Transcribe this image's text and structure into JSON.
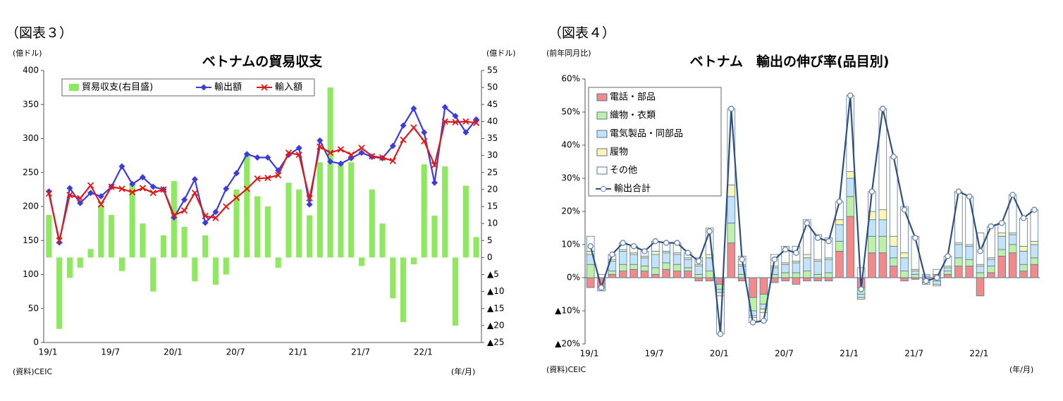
{
  "chart_data": [
    {
      "type": "combo",
      "figure_label": "（図表３）",
      "title": "ベトナムの貿易収支",
      "y_unit": "(億ドル)",
      "y2_unit": "(億ドル)",
      "source": "(資料)CEIC",
      "x_unit": "(年/月)",
      "categories": [
        "19/1",
        null,
        null,
        null,
        null,
        null,
        "19/7",
        null,
        null,
        null,
        null,
        null,
        "20/1",
        null,
        null,
        null,
        null,
        null,
        "20/7",
        null,
        null,
        null,
        null,
        null,
        "21/1",
        null,
        null,
        null,
        null,
        null,
        "21/7",
        null,
        null,
        null,
        null,
        null,
        "22/1",
        null,
        null,
        null,
        null,
        null
      ],
      "ylim": [
        0,
        400
      ],
      "yticks": [
        0,
        50,
        100,
        150,
        200,
        250,
        300,
        350,
        400
      ],
      "y2lim": [
        -25,
        55
      ],
      "y2ticks": [
        {
          "value": -25,
          "label": "▲25"
        },
        {
          "value": -20,
          "label": "▲20"
        },
        {
          "value": -15,
          "label": "▲15"
        },
        {
          "value": -10,
          "label": "▲10"
        },
        {
          "value": -5,
          "label": "▲5"
        },
        0,
        5,
        10,
        15,
        20,
        25,
        30,
        35,
        40,
        45,
        50,
        55
      ],
      "legend": "top-left",
      "legend_layout": "row",
      "stacked": false,
      "series": [
        {
          "name": "貿易収支(右目盛)",
          "type": "bar",
          "axis": "y2",
          "color": "#8ee860",
          "values": [
            12.5,
            -21,
            -6,
            -3,
            2.5,
            15.5,
            12.5,
            -4,
            21.5,
            10,
            -10,
            6.5,
            22.5,
            9,
            -7,
            6.5,
            -8,
            -5,
            20,
            30,
            18,
            15,
            -3,
            22,
            20,
            12.4,
            28,
            50,
            28,
            28,
            -2.5,
            20,
            10,
            -12,
            -19,
            -2,
            27.4,
            12.3,
            26.8,
            -20,
            21.1,
            6
          ]
        },
        {
          "name": "輸出額",
          "type": "line",
          "marker": "diamond",
          "color": "#3c3cdc",
          "values": [
            222,
            147,
            227,
            205,
            220,
            215,
            229,
            259,
            233,
            243,
            229,
            225,
            184,
            210,
            240,
            176,
            192,
            226,
            249,
            277,
            272,
            272,
            253,
            276,
            286,
            203,
            297,
            266,
            263,
            271,
            279,
            273,
            271,
            289,
            319,
            344,
            309,
            235,
            346,
            333,
            309,
            328
          ]
        },
        {
          "name": "輸入額",
          "type": "line",
          "marker": "x",
          "color": "#e01818",
          "values": [
            219,
            150,
            217,
            212,
            231,
            203,
            229,
            226,
            221,
            227,
            220,
            225,
            187,
            194,
            220,
            186,
            183,
            200,
            213,
            226,
            241,
            242,
            246,
            279,
            276,
            212,
            288,
            279,
            284,
            276,
            286,
            274,
            272,
            267,
            298,
            316,
            296,
            261,
            325,
            324,
            325,
            323
          ]
        }
      ]
    },
    {
      "type": "combo",
      "figure_label": "（図表４）",
      "title": "ベトナム　輸出の伸び率(品目別)",
      "y_unit": "(前年同月比)",
      "source": "(資料)CEIC",
      "x_unit": "(年/月)",
      "categories": [
        "19/1",
        null,
        null,
        null,
        null,
        null,
        "19/7",
        null,
        null,
        null,
        null,
        null,
        "20/1",
        null,
        null,
        null,
        null,
        null,
        "20/7",
        null,
        null,
        null,
        null,
        null,
        "21/1",
        null,
        null,
        null,
        null,
        null,
        "21/7",
        null,
        null,
        null,
        null,
        null,
        "22/1",
        null,
        null,
        null,
        null,
        null
      ],
      "ylim": [
        -20,
        60
      ],
      "yticks": [
        {
          "value": -20,
          "label": "▲20%"
        },
        {
          "value": -10,
          "label": "▲10%"
        },
        {
          "value": 0,
          "label": "0%"
        },
        {
          "value": 10,
          "label": "10%"
        },
        {
          "value": 20,
          "label": "20%"
        },
        {
          "value": 30,
          "label": "30%"
        },
        {
          "value": 40,
          "label": "40%"
        },
        {
          "value": 50,
          "label": "50%"
        },
        {
          "value": 60,
          "label": "60%"
        }
      ],
      "legend": "top-left",
      "legend_layout": "column",
      "stacked": true,
      "series": [
        {
          "name": "電話・部品",
          "type": "bar",
          "color": "#f28a8a",
          "values": [
            -3,
            -3,
            1,
            2,
            2.5,
            2,
            1,
            2.5,
            2,
            2,
            -1,
            -1,
            -2,
            10.5,
            -1,
            -6,
            -5,
            -1.5,
            -1,
            -2,
            -1,
            -1,
            -1,
            8,
            18.5,
            -3,
            7.5,
            7.5,
            3.5,
            -1,
            -0.5,
            -0.5,
            1,
            1,
            3.5,
            3.5,
            -5.5,
            1.5,
            6.5,
            7.5,
            2,
            4
          ]
        },
        {
          "name": "織物・衣類",
          "type": "bar",
          "color": "#bff0a8",
          "values": [
            4,
            0,
            1,
            2,
            1.5,
            1.5,
            2,
            2,
            2,
            1,
            1,
            2,
            -1.5,
            6,
            1,
            -4,
            -3,
            1,
            1.5,
            1.5,
            2,
            1,
            1.5,
            3,
            6,
            -2,
            5,
            5,
            2.5,
            2,
            1,
            -1,
            -1,
            1,
            2.5,
            2,
            1.5,
            2,
            2,
            2.5,
            2,
            2
          ]
        },
        {
          "name": "電気製品・同部品",
          "type": "bar",
          "color": "#c4e2f8",
          "values": [
            3,
            -1,
            3,
            4,
            3,
            2.5,
            4,
            3,
            3,
            2.5,
            2.5,
            4,
            -1,
            8,
            2.5,
            -1.5,
            -1.5,
            2,
            2.5,
            3,
            4,
            4,
            4,
            5,
            5.5,
            -1,
            5,
            5,
            3.5,
            4,
            1,
            0.5,
            -1,
            1,
            4,
            4,
            2,
            2,
            4,
            3,
            4,
            4
          ]
        },
        {
          "name": "履物",
          "type": "bar",
          "color": "#fff6b4",
          "values": [
            1,
            0,
            0.5,
            0.5,
            0.5,
            0.5,
            1,
            0.5,
            0.5,
            0.5,
            0.5,
            1,
            -1,
            3.5,
            0.5,
            -0.5,
            -1,
            0.5,
            0.5,
            0.5,
            1,
            0.5,
            0.5,
            1.5,
            2,
            -0.5,
            2.5,
            3,
            3,
            1.5,
            0.5,
            -0.5,
            -0.5,
            0.5,
            0.5,
            0.5,
            0.5,
            0.5,
            1,
            0.5,
            1.5,
            1
          ]
        },
        {
          "name": "その他",
          "type": "bar",
          "color": "#ffffff",
          "values": [
            4.5,
            1,
            1.5,
            2,
            2,
            1.5,
            3,
            2.5,
            3,
            1.5,
            2,
            8,
            -11.5,
            23,
            2.5,
            -1.5,
            -2.5,
            3.5,
            5,
            4.5,
            10.5,
            7.5,
            6,
            5.5,
            23,
            3,
            6,
            30.5,
            24,
            14,
            10,
            0.5,
            1.5,
            3,
            15.5,
            14.5,
            9.5,
            9.5,
            3,
            11.5,
            8.5,
            9.5
          ]
        },
        {
          "name": "輸出合計",
          "type": "line",
          "marker": "circle",
          "color": "#2f4f7f",
          "values": [
            9.5,
            -3,
            7,
            10.5,
            9.5,
            8,
            11,
            10.5,
            10.5,
            7.5,
            5,
            14,
            -17,
            51,
            5.5,
            -13.5,
            -13,
            5.5,
            8.5,
            7.5,
            16.5,
            12,
            11,
            23,
            55,
            -3.5,
            26,
            51,
            36.5,
            20.5,
            12,
            -1,
            0,
            6.5,
            26,
            24.5,
            8,
            15.5,
            16.5,
            25,
            18,
            20.5
          ]
        }
      ]
    }
  ]
}
